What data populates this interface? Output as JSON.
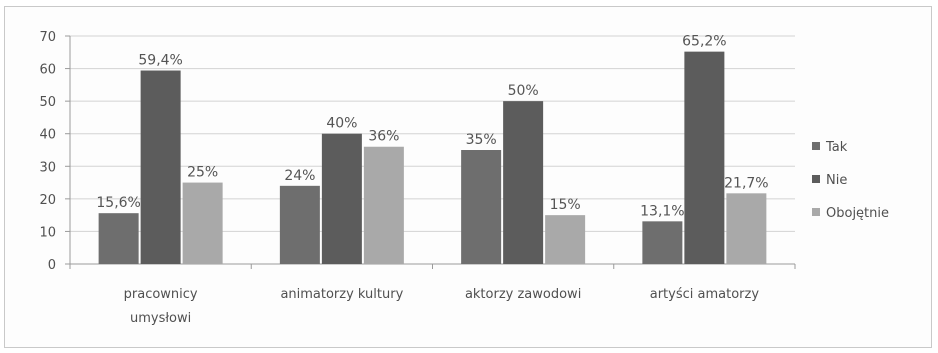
{
  "chart_data": {
    "type": "bar",
    "categories": [
      "pracownicy umysłowi",
      "animatorzy kultury",
      "aktorzy zawodowi",
      "artyści amatorzy"
    ],
    "category_lines": [
      [
        "pracownicy",
        "umysłowi"
      ],
      [
        "animatorzy kultury"
      ],
      [
        "aktorzy zawodowi"
      ],
      [
        "artyści amatorzy"
      ]
    ],
    "series": [
      {
        "name": "Tak",
        "values": [
          15.6,
          24,
          35,
          13.1
        ],
        "labels": [
          "15,6%",
          "24%",
          "35%",
          "13,1%"
        ],
        "color": "#6e6e6e"
      },
      {
        "name": "Nie",
        "values": [
          59.4,
          40,
          50,
          65.2
        ],
        "labels": [
          "59,4%",
          "40%",
          "50%",
          "65,2%"
        ],
        "color": "#5c5c5c"
      },
      {
        "name": "Obojętnie",
        "values": [
          25,
          36,
          15,
          21.7
        ],
        "labels": [
          "25%",
          "36%",
          "15%",
          "21,7%"
        ],
        "color": "#a9a9a9"
      }
    ],
    "ylim": [
      0,
      70
    ],
    "yticks": [
      0,
      10,
      20,
      30,
      40,
      50,
      60,
      70
    ],
    "grid": true,
    "legend": "right",
    "title": "",
    "xlabel": "",
    "ylabel": ""
  }
}
